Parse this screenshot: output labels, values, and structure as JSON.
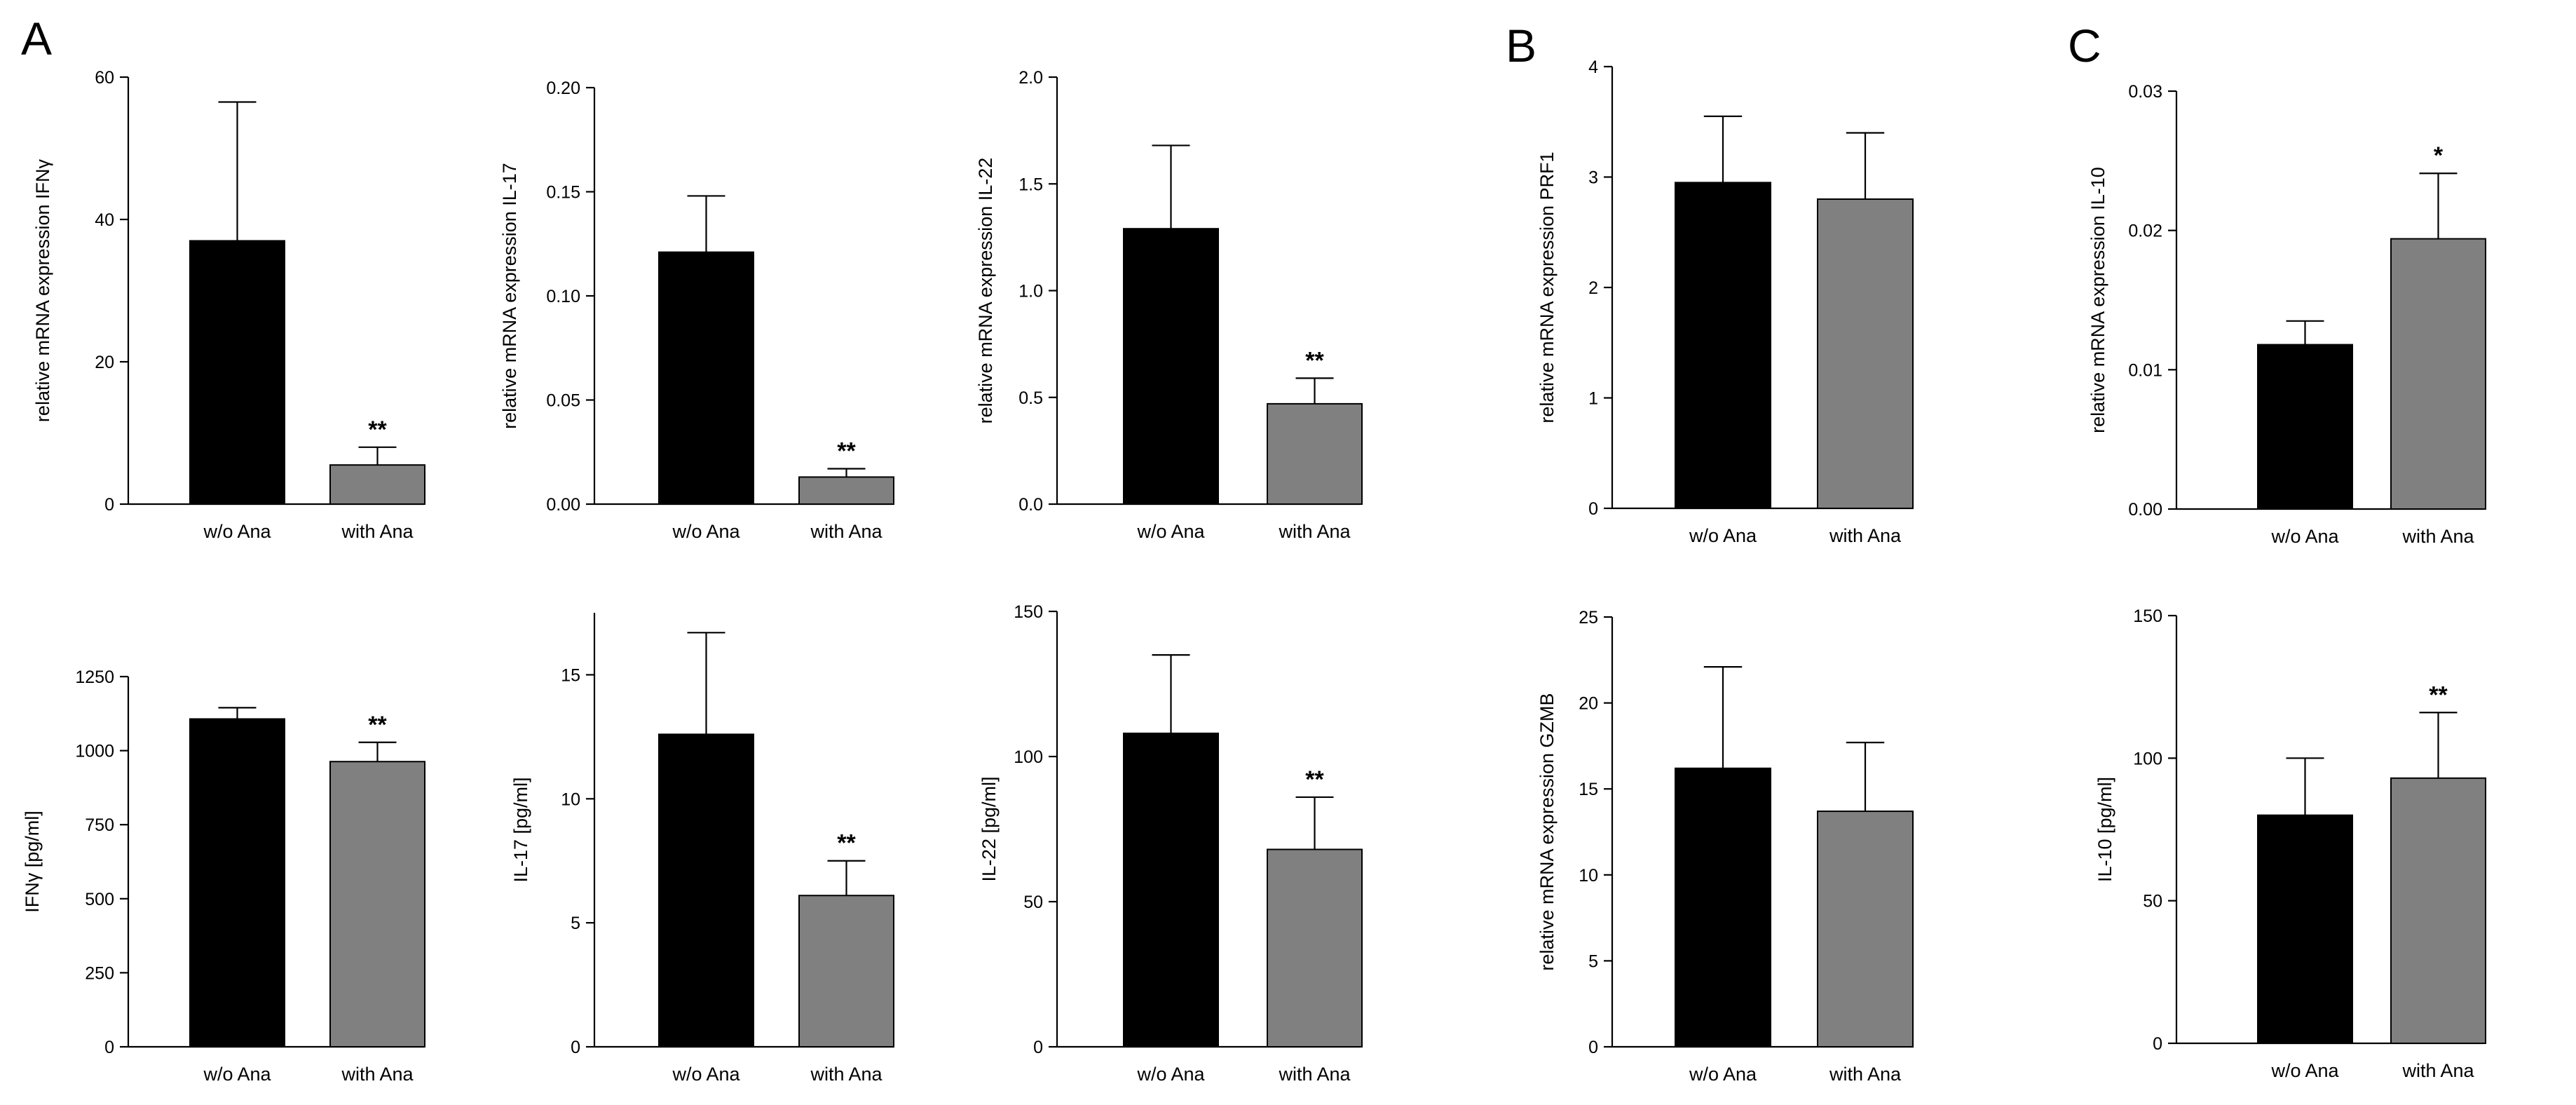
{
  "panel_letters": [
    "A",
    "B",
    "C"
  ],
  "chart_data": [
    {
      "panel": "A",
      "type": "bar",
      "categories": [
        "w/o Ana",
        "with Ana"
      ],
      "values": [
        37,
        5.5
      ],
      "errors": [
        19.5,
        2.5
      ],
      "colors": [
        "#000000",
        "#808080"
      ],
      "significance": [
        "",
        "**"
      ],
      "ylabel": "relative mRNA expression IFNγ",
      "ylim": [
        0,
        60
      ],
      "yticks": [
        "0",
        "20",
        "40",
        "60"
      ]
    },
    {
      "panel": "A",
      "type": "bar",
      "categories": [
        "w/o Ana",
        "with Ana"
      ],
      "values": [
        0.121,
        0.013
      ],
      "errors": [
        0.027,
        0.004
      ],
      "colors": [
        "#000000",
        "#808080"
      ],
      "significance": [
        "",
        "**"
      ],
      "ylabel": "relative mRNA expression IL-17",
      "ylim": [
        0,
        0.2
      ],
      "yticks": [
        "0.00",
        "0.05",
        "0.10",
        "0.15",
        "0.20"
      ]
    },
    {
      "panel": "A",
      "type": "bar",
      "categories": [
        "w/o Ana",
        "with Ana"
      ],
      "values": [
        1.29,
        0.47
      ],
      "errors": [
        0.39,
        0.12
      ],
      "colors": [
        "#000000",
        "#808080"
      ],
      "significance": [
        "",
        "**"
      ],
      "ylabel": "relative mRNA expression IL-22",
      "ylim": [
        0,
        2.0
      ],
      "yticks": [
        "0.0",
        "0.5",
        "1.0",
        "1.5",
        "2.0"
      ]
    },
    {
      "panel": "B",
      "type": "bar",
      "categories": [
        "w/o Ana",
        "with Ana"
      ],
      "values": [
        2.95,
        2.8
      ],
      "errors": [
        0.6,
        0.6
      ],
      "colors": [
        "#000000",
        "#808080"
      ],
      "significance": [
        "",
        ""
      ],
      "ylabel": "relative mRNA expression PRF1",
      "ylim": [
        0,
        4
      ],
      "yticks": [
        "0",
        "1",
        "2",
        "3",
        "4"
      ]
    },
    {
      "panel": "C",
      "type": "bar",
      "categories": [
        "w/o Ana",
        "with Ana"
      ],
      "values": [
        0.0118,
        0.0194
      ],
      "errors": [
        0.0017,
        0.0047
      ],
      "colors": [
        "#000000",
        "#808080"
      ],
      "significance": [
        "",
        "*"
      ],
      "ylabel": "relative mRNA expression IL-10",
      "ylim": [
        0,
        0.03
      ],
      "yticks": [
        "0.00",
        "0.01",
        "0.02",
        "0.03"
      ]
    },
    {
      "panel": "A",
      "type": "bar",
      "categories": [
        "w/o Ana",
        "with Ana"
      ],
      "values": [
        1107,
        963
      ],
      "errors": [
        38,
        65
      ],
      "colors": [
        "#000000",
        "#808080"
      ],
      "significance": [
        "",
        "**"
      ],
      "ylabel": "IFNγ [pg/ml]",
      "ylim": [
        0,
        1250
      ],
      "yticks": [
        "0",
        "250",
        "500",
        "750",
        "1000",
        "1250"
      ]
    },
    {
      "panel": "A",
      "type": "bar",
      "categories": [
        "w/o Ana",
        "with Ana"
      ],
      "values": [
        12.6,
        6.1
      ],
      "errors": [
        4.1,
        1.4
      ],
      "colors": [
        "#000000",
        "#808080"
      ],
      "significance": [
        "",
        "**"
      ],
      "ylabel": "IL-17 [pg/ml]",
      "ylim": [
        0,
        17.5
      ],
      "yticks": [
        "0",
        "5",
        "10",
        "15"
      ]
    },
    {
      "panel": "A",
      "type": "bar",
      "categories": [
        "w/o Ana",
        "with Ana"
      ],
      "values": [
        108,
        68
      ],
      "errors": [
        27,
        18
      ],
      "colors": [
        "#000000",
        "#808080"
      ],
      "significance": [
        "",
        "**"
      ],
      "ylabel": "IL-22 [pg/ml]",
      "ylim": [
        0,
        150
      ],
      "yticks": [
        "0",
        "50",
        "100",
        "150"
      ]
    },
    {
      "panel": "B",
      "type": "bar",
      "categories": [
        "w/o Ana",
        "with Ana"
      ],
      "values": [
        16.2,
        13.7
      ],
      "errors": [
        5.9,
        4.0
      ],
      "colors": [
        "#000000",
        "#808080"
      ],
      "significance": [
        "",
        ""
      ],
      "ylabel": "relative mRNA expression GZMB",
      "ylim": [
        0,
        25
      ],
      "yticks": [
        "0",
        "5",
        "10",
        "15",
        "20",
        "25"
      ]
    },
    {
      "panel": "C",
      "type": "bar",
      "categories": [
        "w/o Ana",
        "with Ana"
      ],
      "values": [
        80,
        93
      ],
      "errors": [
        20,
        23
      ],
      "colors": [
        "#000000",
        "#808080"
      ],
      "significance": [
        "",
        "**"
      ],
      "ylabel": "IL-10 [pg/ml]",
      "ylim": [
        0,
        150
      ],
      "yticks": [
        "0",
        "50",
        "100",
        "150"
      ]
    }
  ]
}
